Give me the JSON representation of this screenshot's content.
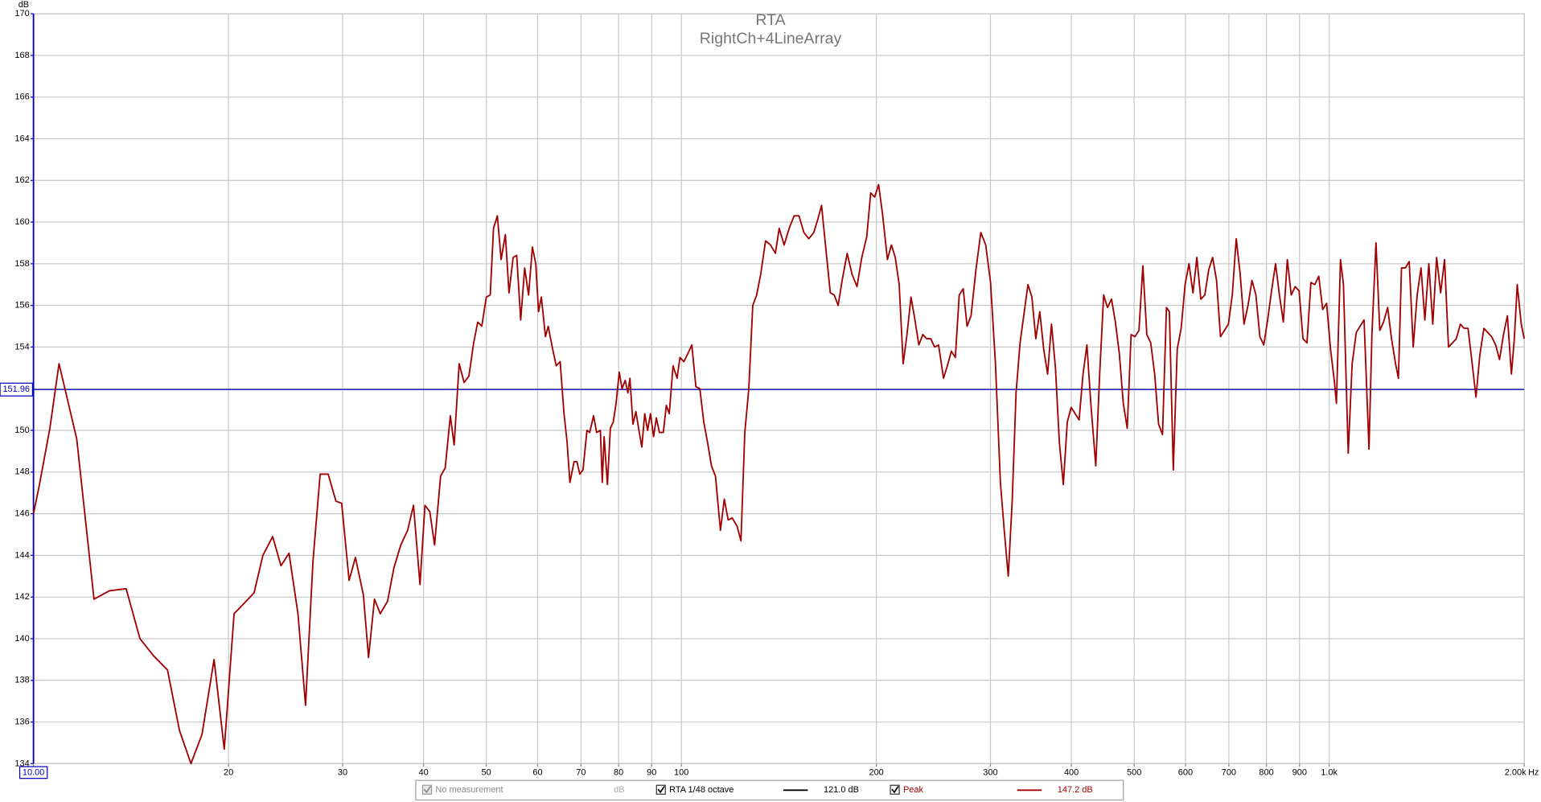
{
  "chart_data": {
    "type": "line",
    "title": "RTA",
    "subtitle": "RightCh+4LineArray",
    "ylabel": "dB",
    "xlabel": "Hz",
    "x_scale": "log",
    "grid": true,
    "xlim": [
      10,
      2000
    ],
    "ylim": [
      134,
      170
    ],
    "xticks": [
      {
        "value": 10,
        "label": "10.00"
      },
      20,
      30,
      40,
      50,
      60,
      70,
      80,
      90,
      100,
      200,
      300,
      400,
      500,
      600,
      700,
      800,
      900,
      {
        "value": 1000,
        "label": "1.0k"
      },
      {
        "value": 2000,
        "label": "2.00k"
      }
    ],
    "yticks": [
      134,
      136,
      138,
      140,
      142,
      144,
      146,
      148,
      150,
      152,
      154,
      156,
      158,
      160,
      162,
      164,
      166,
      168,
      170
    ],
    "marker": {
      "value": 151.96,
      "color": "#0000c0"
    },
    "x": [
      10,
      10.2,
      10.6,
      10.95,
      11.66,
      12.4,
      13.1,
      13.9,
      14.6,
      15.3,
      16.1,
      16.8,
      17.5,
      18.2,
      19.0,
      19.7,
      20.4,
      21.0,
      21.9,
      22.6,
      23.4,
      24.1,
      24.8,
      25.6,
      26.3,
      27.0,
      27.7,
      28.5,
      29.3,
      29.9,
      30.7,
      31.4,
      32.3,
      32.9,
      33.6,
      34.3,
      35.2,
      36.0,
      36.9,
      37.8,
      38.6,
      39.5,
      40.2,
      40.9,
      41.6,
      42.5,
      43.2,
      44.0,
      44.6,
      45.4,
      46.2,
      47.0,
      47.8,
      48.5,
      49.2,
      50.0,
      50.7,
      51.3,
      52.0,
      52.7,
      53.5,
      54.2,
      55.0,
      55.7,
      56.5,
      57.3,
      58.1,
      58.9,
      59.6,
      60.2,
      60.8,
      61.7,
      62.3,
      63.2,
      64.1,
      65.0,
      65.9,
      66.6,
      67.3,
      68.3,
      69.0,
      69.7,
      70.5,
      71.5,
      72.2,
      73.2,
      74.0,
      75.0,
      75.5,
      76.0,
      76.9,
      77.7,
      78.5,
      79.3,
      80.2,
      81.0,
      81.9,
      82.7,
      83.3,
      84.2,
      85.1,
      86.0,
      86.9,
      87.8,
      88.7,
      89.6,
      90.6,
      91.5,
      92.5,
      93.8,
      94.8,
      95.8,
      97.1,
      98.5,
      99.5,
      100.9,
      102.4,
      103.8,
      105.3,
      106.8,
      108.3,
      109.8,
      111.3,
      112.9,
      114.9,
      116.5,
      118.1,
      119.8,
      121.9,
      123.6,
      125.3,
      127.1,
      128.9,
      130.7,
      132.6,
      134.9,
      137.3,
      139.7,
      141.6,
      144.1,
      146.7,
      149.3,
      151.9,
      154.6,
      157.3,
      160.1,
      162.3,
      164.6,
      166.9,
      169.8,
      172.2,
      174.6,
      177.1,
      180.3,
      183.4,
      186.7,
      189.9,
      193.3,
      196.0,
      198.8,
      201.6,
      204.4,
      208.0,
      211.0,
      213.9,
      216.9,
      220.0,
      223.0,
      226.2,
      229.4,
      232.6,
      235.9,
      239.2,
      242.6,
      246.0,
      249.5,
      253.9,
      257.4,
      261.1,
      264.8,
      268.5,
      272.3,
      276.1,
      280.0,
      284.9,
      289.9,
      295.0,
      300.1,
      305.4,
      310.8,
      315.1,
      319.6,
      324.1,
      328.6,
      333.3,
      338.0,
      342.8,
      347.6,
      352.5,
      357.5,
      362.5,
      367.6,
      372.7,
      378.0,
      383.3,
      388.7,
      394.2,
      399.7,
      405.4,
      411.1,
      416.9,
      422.7,
      428.6,
      436.2,
      442.3,
      448.6,
      454.8,
      461.3,
      467.7,
      474.3,
      481.0,
      487.8,
      494.6,
      501.5,
      508.6,
      515.7,
      523.0,
      530.3,
      537.8,
      545.3,
      553.0,
      560.8,
      566.7,
      574.6,
      582.7,
      590.9,
      599.2,
      607.6,
      616.2,
      624.8,
      633.7,
      642.7,
      651.6,
      660.8,
      670.1,
      679.5,
      689.1,
      698.9,
      708.6,
      718.6,
      728.8,
      738.9,
      749.4,
      760.0,
      770.7,
      781.6,
      792.6,
      803.5,
      814.8,
      826.4,
      837.9,
      849.7,
      861.7,
      873.8,
      886.1,
      898.6,
      911.1,
      924.1,
      937.1,
      950.2,
      963.6,
      977.2,
      990.8,
      1004.8,
      1019,
      1026,
      1041,
      1052,
      1070,
      1085,
      1101,
      1116,
      1132,
      1152,
      1164,
      1181,
      1197,
      1213,
      1231,
      1248,
      1266,
      1279,
      1293,
      1311,
      1329,
      1348,
      1367,
      1386,
      1405,
      1425,
      1445,
      1465,
      1486,
      1507,
      1528,
      1550,
      1571,
      1594,
      1616,
      1638,
      1661,
      1685,
      1708,
      1733,
      1757,
      1781,
      1807,
      1832,
      1858,
      1884,
      1911,
      1931,
      1951,
      1979,
      2000
    ],
    "series": [
      {
        "name": "Peak",
        "color": "#a00000",
        "level": "147.2 dB",
        "values": [
          146.0,
          147.3,
          150.1,
          153.2,
          149.6,
          141.9,
          142.3,
          142.4,
          140.0,
          139.2,
          138.5,
          135.6,
          134.0,
          135.4,
          139.0,
          134.7,
          141.2,
          141.6,
          142.2,
          144.0,
          144.9,
          143.5,
          144.1,
          141.2,
          136.8,
          143.7,
          147.9,
          147.9,
          146.6,
          146.5,
          142.8,
          143.9,
          142.1,
          139.1,
          141.9,
          141.2,
          141.8,
          143.4,
          144.5,
          145.2,
          146.4,
          142.6,
          146.4,
          146.1,
          144.5,
          147.8,
          148.2,
          150.7,
          149.3,
          153.2,
          152.3,
          152.6,
          154.2,
          155.2,
          155.0,
          156.4,
          156.5,
          159.7,
          160.3,
          158.2,
          159.4,
          156.6,
          158.3,
          158.4,
          155.3,
          157.8,
          156.5,
          158.8,
          158.0,
          155.7,
          156.4,
          154.5,
          155.0,
          154.0,
          153.1,
          153.3,
          150.8,
          149.5,
          147.5,
          148.5,
          148.5,
          147.9,
          148.1,
          150.0,
          149.9,
          150.7,
          149.9,
          150.0,
          147.5,
          149.7,
          147.4,
          150.1,
          150.4,
          151.3,
          152.8,
          152.0,
          152.4,
          151.8,
          152.5,
          150.3,
          150.9,
          150.0,
          149.2,
          150.8,
          150.0,
          150.8,
          149.7,
          150.6,
          149.9,
          149.9,
          151.2,
          150.8,
          153.1,
          152.5,
          153.5,
          153.3,
          153.7,
          154.1,
          152.1,
          152.0,
          150.4,
          149.4,
          148.3,
          147.8,
          145.2,
          146.7,
          145.7,
          145.8,
          145.4,
          144.7,
          149.9,
          152.0,
          156.0,
          156.5,
          157.5,
          159.1,
          158.9,
          158.5,
          159.7,
          158.9,
          159.7,
          160.3,
          160.3,
          159.5,
          159.2,
          159.5,
          160.1,
          160.8,
          158.9,
          156.6,
          156.5,
          156.0,
          157.2,
          158.5,
          157.5,
          156.9,
          158.3,
          159.3,
          161.4,
          161.2,
          161.8,
          160.4,
          158.2,
          158.9,
          158.3,
          157.0,
          153.2,
          154.6,
          156.4,
          155.3,
          154.1,
          154.6,
          154.4,
          154.4,
          154.0,
          154.1,
          152.5,
          153.1,
          153.8,
          153.5,
          156.5,
          156.8,
          155.0,
          155.5,
          157.7,
          159.5,
          158.9,
          157.1,
          153.2,
          147.5,
          145.2,
          143.0,
          146.6,
          151.8,
          154.2,
          155.6,
          157.0,
          156.4,
          154.4,
          155.7,
          153.9,
          152.7,
          155.1,
          153.0,
          149.4,
          147.4,
          150.4,
          151.1,
          150.8,
          150.5,
          152.7,
          154.1,
          151.3,
          148.3,
          152.7,
          156.5,
          155.9,
          156.3,
          155.2,
          153.7,
          151.3,
          150.1,
          154.6,
          154.5,
          154.8,
          157.9,
          154.6,
          154.2,
          152.7,
          150.3,
          149.8,
          155.9,
          155.7,
          148.1,
          153.9,
          154.9,
          157.0,
          158.0,
          156.6,
          158.3,
          156.3,
          156.5,
          157.7,
          158.3,
          157.2,
          154.5,
          154.8,
          155.1,
          156.5,
          159.2,
          157.5,
          155.1,
          156.0,
          157.2,
          156.5,
          154.5,
          154.1,
          155.3,
          156.7,
          158.0,
          156.5,
          155.2,
          158.2,
          156.5,
          156.9,
          156.7,
          154.4,
          154.2,
          157.1,
          157.0,
          157.4,
          155.8,
          156.1,
          153.9,
          152.3,
          151.3,
          158.2,
          157.0,
          148.9,
          153.2,
          154.7,
          155.0,
          155.3,
          149.1,
          154.6,
          159.0,
          154.8,
          155.2,
          155.9,
          154.4,
          153.2,
          152.5,
          157.8,
          157.8,
          158.1,
          154.0,
          156.5,
          157.8,
          155.3,
          158.0,
          155.1,
          158.3,
          156.6,
          158.2,
          154.0,
          154.2,
          154.4,
          155.1,
          154.9,
          154.9,
          153.3,
          151.6,
          153.6,
          154.9,
          154.7,
          154.5,
          154.1,
          153.4,
          154.6,
          155.5,
          152.7,
          154.4,
          157.0,
          155.1,
          154.4
        ]
      }
    ]
  },
  "status_bar": {
    "measurement": "No measurement",
    "unit": "dB",
    "entries": [
      {
        "name": "RTA 1/48 octave",
        "color": "#000000",
        "level": "121.0 dB"
      }
    ]
  }
}
